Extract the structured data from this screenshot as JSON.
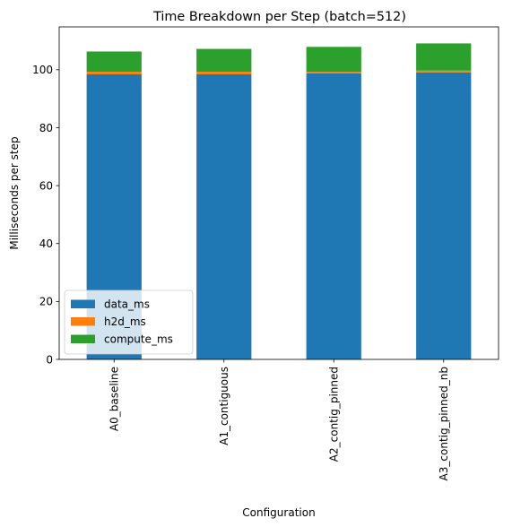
{
  "chart_data": {
    "type": "bar",
    "stacked": true,
    "title": "Time Breakdown per Step (batch=512)",
    "xlabel": "Configuration",
    "ylabel": "Milliseconds per step",
    "categories": [
      "A0_baseline",
      "A1_contiguous",
      "A2_contig_pinned",
      "A3_contig_pinned_nb"
    ],
    "series": [
      {
        "name": "data_ms",
        "color": "#1f77b4",
        "values": [
          98.4,
          98.4,
          98.8,
          99.1
        ]
      },
      {
        "name": "h2d_ms",
        "color": "#ff7f0e",
        "values": [
          0.9,
          0.9,
          0.5,
          0.6
        ]
      },
      {
        "name": "compute_ms",
        "color": "#2ca02c",
        "values": [
          7.0,
          7.9,
          8.6,
          9.4
        ]
      }
    ],
    "yticks": [
      0,
      20,
      40,
      60,
      80,
      100
    ],
    "ylim": [
      0,
      114.8
    ],
    "grid": false,
    "legend_position": "lower-left"
  }
}
